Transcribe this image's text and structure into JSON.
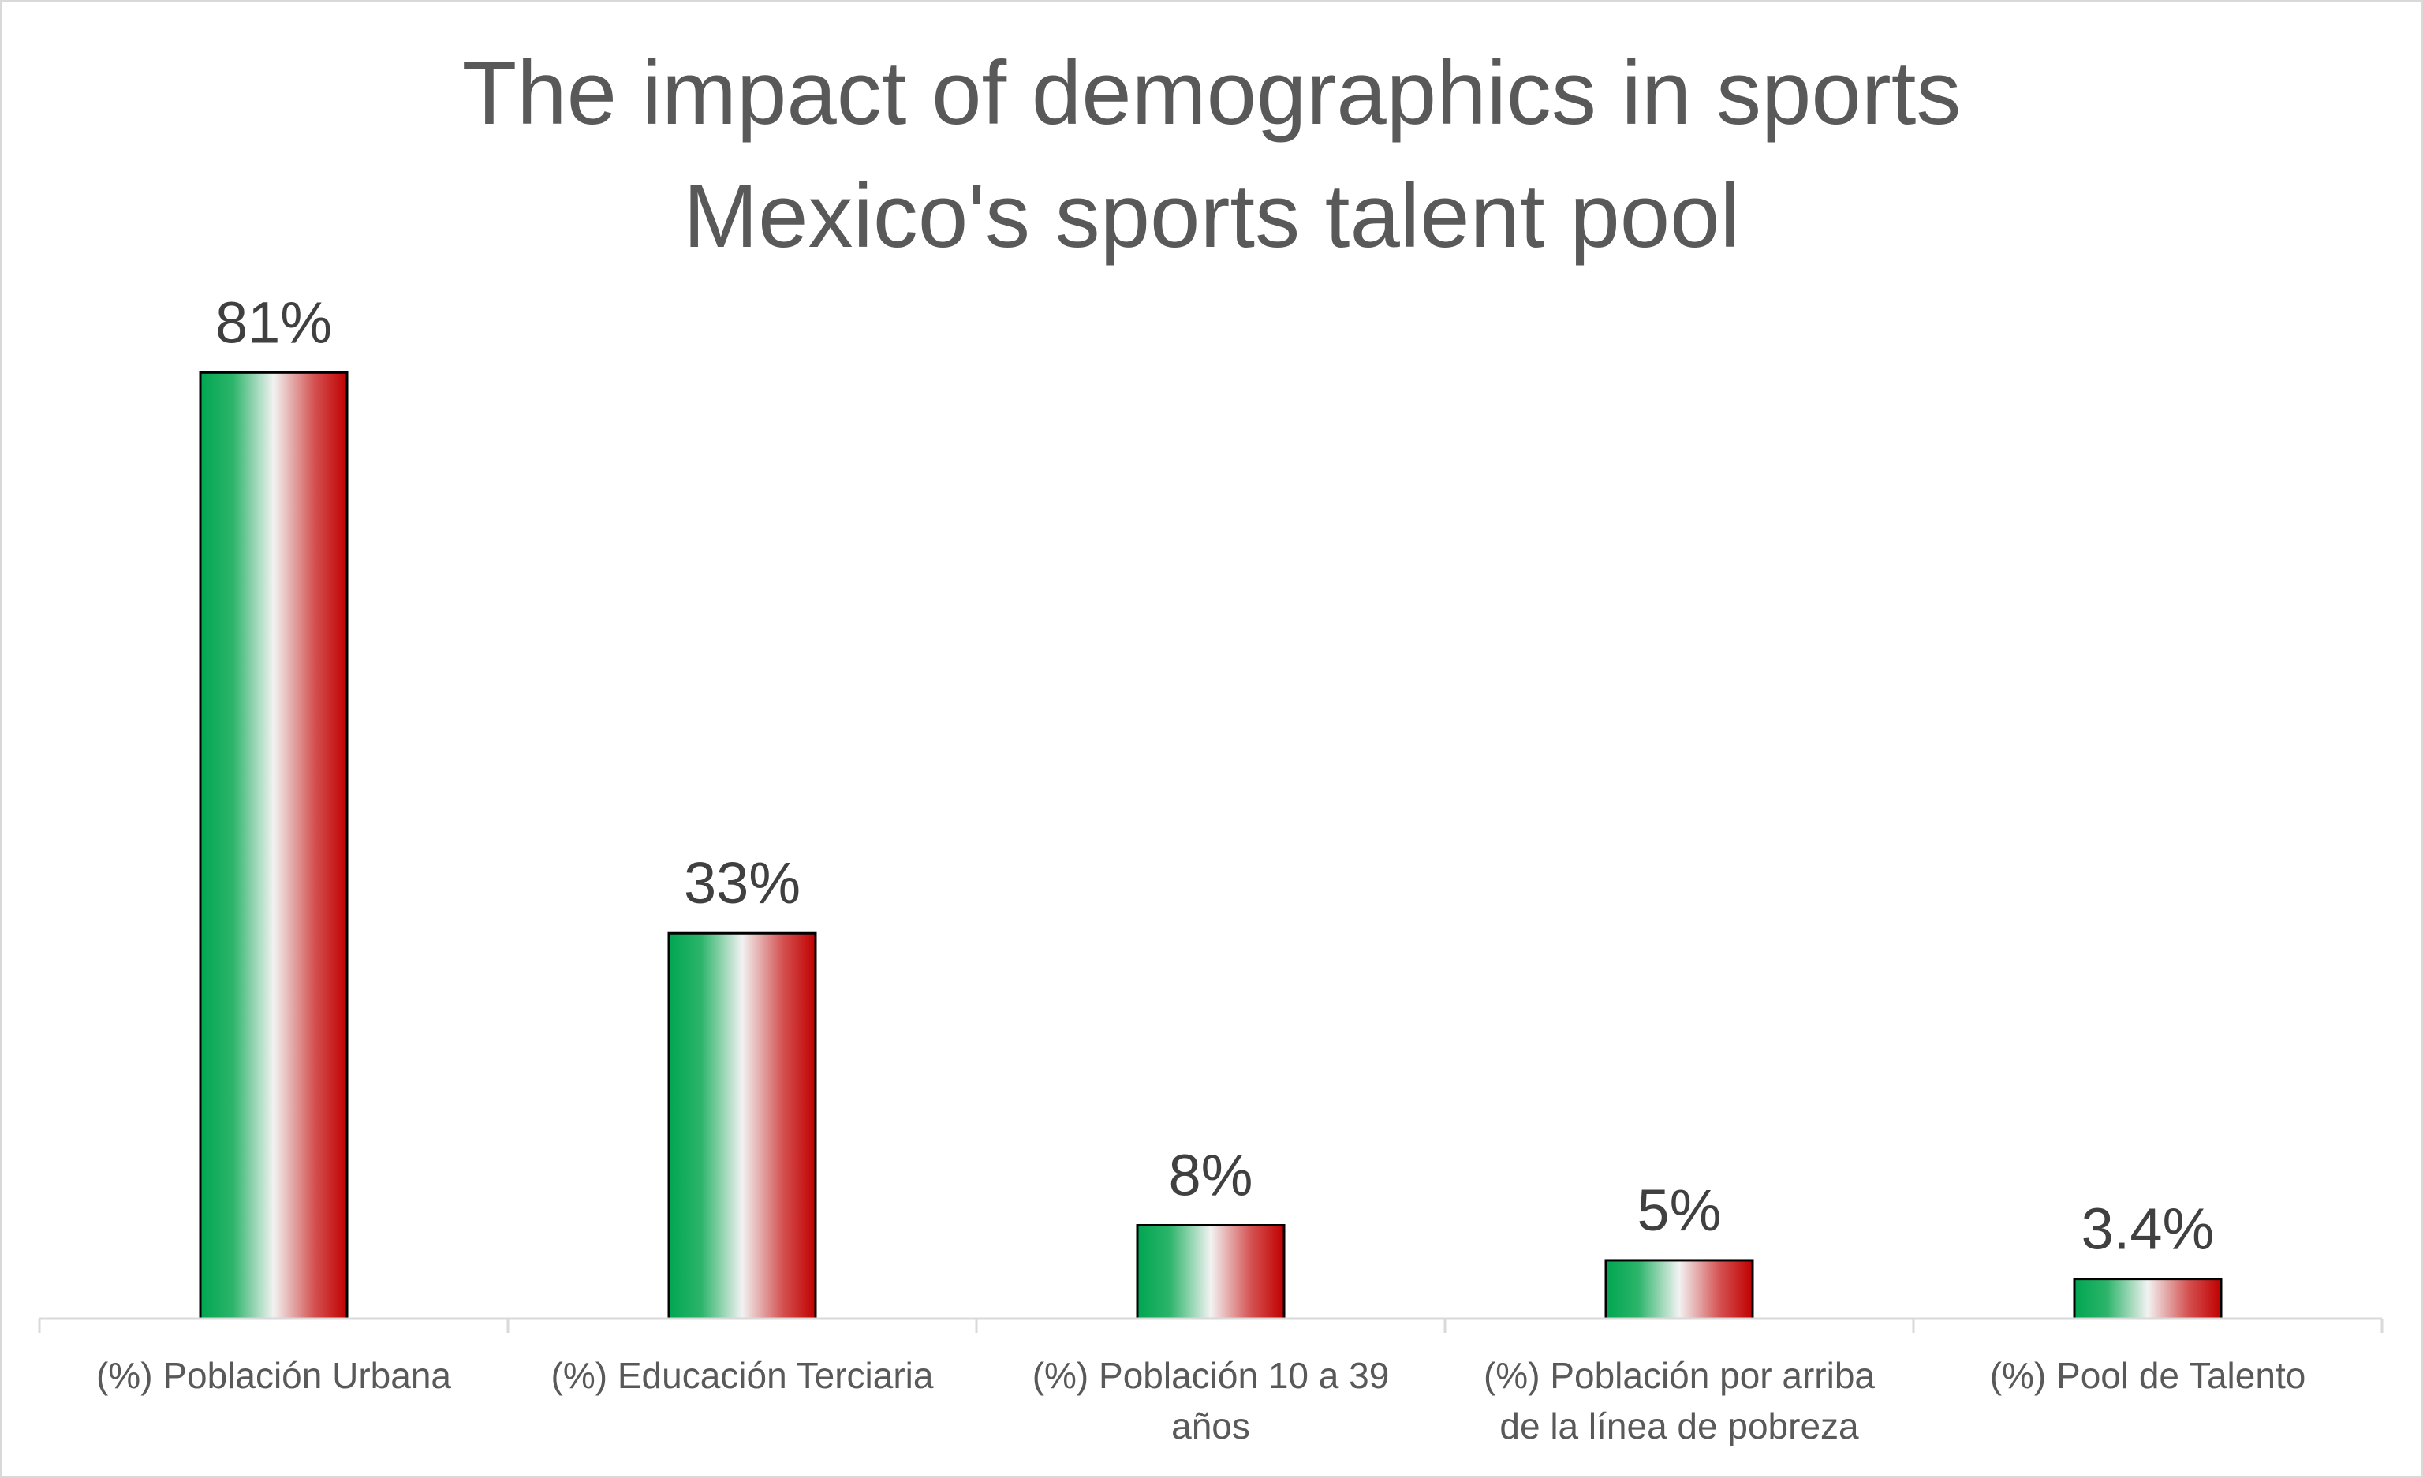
{
  "chart_data": {
    "type": "bar",
    "title": [
      "The impact of demographics in sports",
      "Mexico's sports talent pool"
    ],
    "categories": [
      "(%) Población Urbana",
      "(%) Educación Terciaria",
      "(%) Población 10 a 39 años",
      "(%) Población por arriba de la línea de pobreza",
      "(%) Pool de Talento"
    ],
    "category_lines": [
      [
        "(%) Población Urbana"
      ],
      [
        "(%) Educación Terciaria"
      ],
      [
        "(%) Población 10 a 39",
        "años"
      ],
      [
        "(%) Población por arriba",
        "de la línea de pobreza"
      ],
      [
        "(%) Pool de Talento"
      ]
    ],
    "values": [
      81,
      33,
      8,
      5,
      3.4
    ],
    "data_labels": [
      "81%",
      "33%",
      "8%",
      "5%",
      "3.4%"
    ],
    "ylim": [
      0,
      90
    ],
    "grid": false,
    "legend": "none",
    "bar_gradient": [
      "#00a651",
      "#f2f2f2",
      "#c00000"
    ],
    "bar_outline": "#000000",
    "axis_color": "#d9d9d9"
  }
}
